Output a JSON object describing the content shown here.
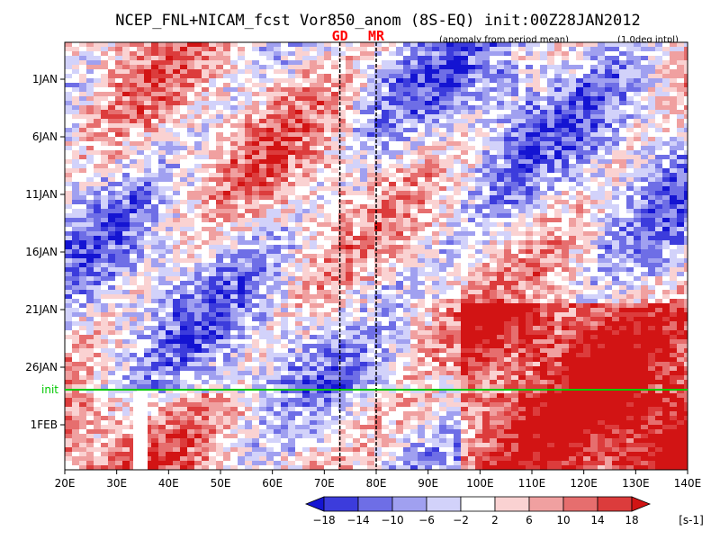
{
  "title": "NCEP_FNL+NICAM_fcst Vor850_anom (8S-EQ) init:00Z28JAN2012",
  "subtitle_left": "(anomaly from period mean)",
  "subtitle_right": "(1.0deg intpl)",
  "markers": [
    {
      "label": "GD",
      "lon": 73
    },
    {
      "label": "MR",
      "lon": 80
    }
  ],
  "init_label": "init",
  "chart_data": {
    "type": "heatmap",
    "variable": "Vor850_anom",
    "x": {
      "ticks": [
        "20E",
        "30E",
        "40E",
        "50E",
        "60E",
        "70E",
        "80E",
        "90E",
        "100E",
        "110E",
        "120E",
        "130E",
        "140E"
      ],
      "range": [
        20,
        140
      ]
    },
    "y": {
      "ticks": [
        "1JAN",
        "6JAN",
        "11JAN",
        "16JAN",
        "21JAN",
        "26JAN",
        "1FEB"
      ]
    },
    "init_line": "init",
    "colorbar": {
      "levels": [
        "-18",
        "-14",
        "-10",
        "-6",
        "-2",
        "2",
        "6",
        "10",
        "14",
        "18"
      ],
      "unit": "[s-1]",
      "colors": [
        "#1414d2",
        "#3c3cdc",
        "#6e6ee6",
        "#a0a0f0",
        "#d2d2fa",
        "#ffffff",
        "#fad2d2",
        "#f0a0a0",
        "#e66e6e",
        "#dc3c3c",
        "#d21414"
      ]
    },
    "grid": false
  },
  "colors": {
    "init_line": "#00c800",
    "marker_text": "#ff0000"
  }
}
